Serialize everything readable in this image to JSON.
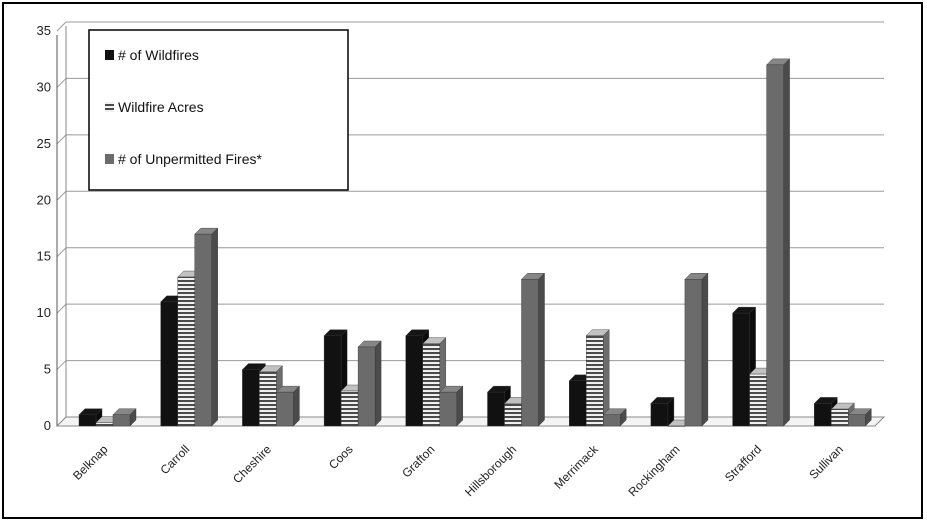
{
  "chart_data": {
    "type": "bar",
    "title": "",
    "xlabel": "",
    "ylabel": "",
    "ylim": [
      0,
      35
    ],
    "yticks": [
      0,
      5,
      10,
      15,
      20,
      25,
      30,
      35
    ],
    "grid": true,
    "legend_position": "top-left",
    "categories": [
      "Belknap",
      "Carroll",
      "Cheshire",
      "Coos",
      "Grafton",
      "Hillsborough",
      "Merrimack",
      "Rockingham",
      "Strafford",
      "Sullivan"
    ],
    "series": [
      {
        "name": "# of Wildfires",
        "values": [
          1,
          11,
          5,
          8,
          8,
          3,
          4,
          2,
          10,
          2
        ],
        "color": "#111111",
        "pattern": "solid"
      },
      {
        "name": "Wildfire Acres",
        "values": [
          0.3,
          13.2,
          4.8,
          3.1,
          7.3,
          2.0,
          8.0,
          0,
          4.6,
          1.5
        ],
        "color": "#9a9a9a",
        "pattern": "horizontal-stripes"
      },
      {
        "name": "# of Unpermitted Fires*",
        "values": [
          1,
          17,
          3,
          7,
          3,
          13,
          1,
          13,
          32,
          1
        ],
        "color": "#6b6b6b",
        "pattern": "solid"
      }
    ]
  }
}
